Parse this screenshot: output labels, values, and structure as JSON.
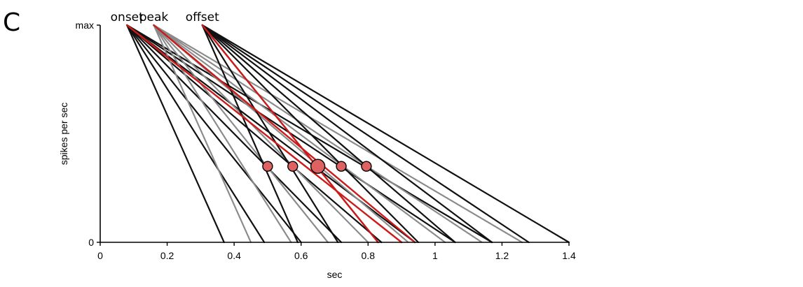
{
  "panel_label": "C",
  "chart_data": {
    "type": "line",
    "title": "",
    "xlabel": "sec",
    "ylabel": "spikes per sec",
    "xlim": [
      0,
      1.4
    ],
    "ylim": [
      0,
      1
    ],
    "x_ticks": [
      "0",
      "0.2",
      "0.4",
      "0.6",
      "0.8",
      "1",
      "1.2",
      "1.4"
    ],
    "x_tick_values": [
      0,
      0.2,
      0.4,
      0.6,
      0.8,
      1.0,
      1.2,
      1.4
    ],
    "y_ticks": [
      "0",
      "max"
    ],
    "y_tick_values": [
      0,
      1
    ],
    "top_labels": [
      {
        "text": "onset",
        "x": 0.08
      },
      {
        "text": "peak",
        "x": 0.16
      },
      {
        "text": "offset",
        "x": 0.305
      }
    ],
    "origins": {
      "onset": 0.08,
      "peak": 0.16,
      "offset": 0.305
    },
    "colors": {
      "black": "#111111",
      "gray": "#8a8a8a",
      "red": "#cc1a1a",
      "marker_fill": "#de6262"
    },
    "series": [
      {
        "group": "onset",
        "style": "black",
        "x": [
          0.08,
          0.37
        ],
        "y": [
          1,
          0
        ]
      },
      {
        "group": "onset",
        "style": "black",
        "x": [
          0.08,
          0.49
        ],
        "y": [
          1,
          0
        ]
      },
      {
        "group": "onset",
        "style": "black",
        "x": [
          0.08,
          0.6
        ],
        "y": [
          1,
          0
        ]
      },
      {
        "group": "onset",
        "style": "black",
        "x": [
          0.08,
          0.72
        ],
        "y": [
          1,
          0
        ]
      },
      {
        "group": "onset",
        "style": "black",
        "x": [
          0.08,
          0.84
        ],
        "y": [
          1,
          0
        ]
      },
      {
        "group": "onset",
        "style": "black",
        "x": [
          0.08,
          0.94
        ],
        "y": [
          1,
          0
        ]
      },
      {
        "group": "onset",
        "style": "black",
        "x": [
          0.08,
          1.06
        ],
        "y": [
          1,
          0
        ]
      },
      {
        "group": "onset",
        "style": "black",
        "x": [
          0.08,
          1.17
        ],
        "y": [
          1,
          0
        ]
      },
      {
        "group": "peak",
        "style": "gray",
        "x": [
          0.16,
          0.45
        ],
        "y": [
          1,
          0
        ]
      },
      {
        "group": "peak",
        "style": "gray",
        "x": [
          0.16,
          0.57
        ],
        "y": [
          1,
          0
        ]
      },
      {
        "group": "peak",
        "style": "gray",
        "x": [
          0.16,
          0.68
        ],
        "y": [
          1,
          0
        ]
      },
      {
        "group": "peak",
        "style": "gray",
        "x": [
          0.16,
          0.8
        ],
        "y": [
          1,
          0
        ]
      },
      {
        "group": "peak",
        "style": "gray",
        "x": [
          0.16,
          0.92
        ],
        "y": [
          1,
          0
        ]
      },
      {
        "group": "peak",
        "style": "gray",
        "x": [
          0.16,
          1.03
        ],
        "y": [
          1,
          0
        ]
      },
      {
        "group": "peak",
        "style": "gray",
        "x": [
          0.16,
          1.14
        ],
        "y": [
          1,
          0
        ]
      },
      {
        "group": "peak",
        "style": "gray",
        "x": [
          0.16,
          1.26
        ],
        "y": [
          1,
          0
        ]
      },
      {
        "group": "offset",
        "style": "black",
        "x": [
          0.305,
          0.59
        ],
        "y": [
          1,
          0
        ]
      },
      {
        "group": "offset",
        "style": "black",
        "x": [
          0.305,
          0.71
        ],
        "y": [
          1,
          0
        ]
      },
      {
        "group": "offset",
        "style": "black",
        "x": [
          0.305,
          0.83
        ],
        "y": [
          1,
          0
        ]
      },
      {
        "group": "offset",
        "style": "black",
        "x": [
          0.305,
          0.95
        ],
        "y": [
          1,
          0
        ]
      },
      {
        "group": "offset",
        "style": "black",
        "x": [
          0.305,
          1.06
        ],
        "y": [
          1,
          0
        ]
      },
      {
        "group": "offset",
        "style": "black",
        "x": [
          0.305,
          1.17
        ],
        "y": [
          1,
          0
        ]
      },
      {
        "group": "offset",
        "style": "black",
        "x": [
          0.305,
          1.28
        ],
        "y": [
          1,
          0
        ]
      },
      {
        "group": "offset",
        "style": "black",
        "x": [
          0.305,
          1.4
        ],
        "y": [
          1,
          0
        ]
      },
      {
        "group": "onset",
        "style": "red",
        "x": [
          0.08,
          0.9
        ],
        "y": [
          1,
          0
        ]
      },
      {
        "group": "peak",
        "style": "red",
        "x": [
          0.16,
          0.94
        ],
        "y": [
          1,
          0
        ]
      },
      {
        "group": "offset",
        "style": "red",
        "x": [
          0.305,
          0.83
        ],
        "y": [
          1,
          0
        ]
      }
    ],
    "markers": [
      {
        "x": 0.5,
        "y": 0.35,
        "size": "small"
      },
      {
        "x": 0.575,
        "y": 0.35,
        "size": "small"
      },
      {
        "x": 0.65,
        "y": 0.35,
        "size": "large"
      },
      {
        "x": 0.72,
        "y": 0.35,
        "size": "small"
      },
      {
        "x": 0.795,
        "y": 0.35,
        "size": "small"
      }
    ]
  }
}
